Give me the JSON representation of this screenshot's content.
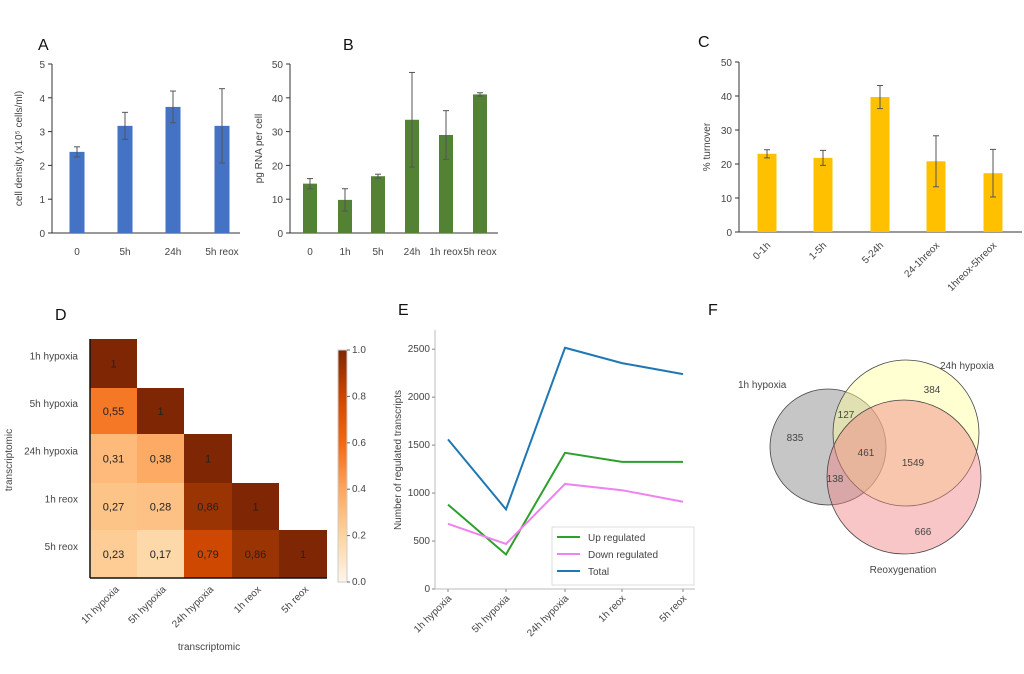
{
  "chart_data": [
    {
      "panel": "A",
      "type": "bar",
      "color": "#4472C4",
      "categories": [
        "0",
        "5h",
        "24h",
        "5h reox"
      ],
      "values": [
        2.4,
        3.17,
        3.73,
        3.17
      ],
      "errors": [
        0.15,
        0.4,
        0.47,
        1.1
      ],
      "ylabel": "cell density (x10⁵ cells/ml)",
      "xlabel": "",
      "ylim": [
        0,
        5
      ],
      "yticks": [
        0,
        1,
        2,
        3,
        4,
        5
      ]
    },
    {
      "panel": "B",
      "type": "bar",
      "color": "#548235",
      "categories": [
        "0",
        "1h",
        "5h",
        "24h",
        "1h reox",
        "5h reox"
      ],
      "values": [
        14.6,
        9.8,
        16.8,
        33.5,
        29.0,
        41.0
      ],
      "errors": [
        1.5,
        3.3,
        0.6,
        14.0,
        7.2,
        0.5
      ],
      "ylabel": "pg RNA per cell",
      "xlabel": "",
      "ylim": [
        0,
        50
      ],
      "yticks": [
        0,
        10,
        20,
        30,
        40,
        50
      ]
    },
    {
      "panel": "C",
      "type": "bar",
      "color": "#FFC000",
      "categories": [
        "0-1h",
        "1-5h",
        "5-24h",
        "24-1hreox",
        "1hreox-5hreox"
      ],
      "values": [
        23.0,
        21.8,
        39.7,
        20.8,
        17.3
      ],
      "errors": [
        1.2,
        2.2,
        3.4,
        7.5,
        7.0
      ],
      "ylabel": "% turnover",
      "xlabel": "",
      "ylim": [
        0,
        50
      ],
      "yticks": [
        0,
        10,
        20,
        30,
        40,
        50
      ]
    },
    {
      "panel": "D",
      "type": "heatmap",
      "labels": [
        "1h hypoxia",
        "5h hypoxia",
        "24h hypoxia",
        "1h reox",
        "5h reox"
      ],
      "matrix": [
        [
          "1"
        ],
        [
          "0,55",
          "1"
        ],
        [
          "0,31",
          "0,38",
          "1"
        ],
        [
          "0,27",
          "0,28",
          "0,86",
          "1"
        ],
        [
          "0,23",
          "0,17",
          "0,79",
          "0,86",
          "1"
        ]
      ],
      "xlabel": "transcriptomic",
      "ylabel": "transcriptomic",
      "colorbar_range": [
        0.0,
        1.0
      ],
      "colorbar_ticks": [
        "0.0",
        "0.2",
        "0.4",
        "0.6",
        "0.8",
        "1.0"
      ],
      "colormap": "Oranges"
    },
    {
      "panel": "E",
      "type": "line",
      "categories": [
        "1h hypoxia",
        "5h hypoxia",
        "24h hypoxia",
        "1h reox",
        "5h reox"
      ],
      "series": [
        {
          "name": "Up regulated",
          "color": "#2ca02c",
          "values": [
            880,
            360,
            1420,
            1325,
            1325
          ]
        },
        {
          "name": "Down regulated",
          "color": "#ee82ee",
          "values": [
            680,
            470,
            1095,
            1030,
            910
          ]
        },
        {
          "name": "Total",
          "color": "#1f77b4",
          "values": [
            1560,
            830,
            2515,
            2355,
            2240
          ]
        }
      ],
      "ylabel": "Number of regulated transcripts",
      "xlabel": "",
      "ylim": [
        0,
        2700
      ],
      "yticks": [
        0,
        500,
        1000,
        1500,
        2000,
        2500
      ],
      "legend": "bottom-right"
    },
    {
      "panel": "F",
      "type": "venn",
      "sets": [
        {
          "name": "1h hypoxia",
          "color": "#808080"
        },
        {
          "name": "24h hypoxia",
          "color": "#ffff99"
        },
        {
          "name": "Reoxygenation",
          "color": "#f08080"
        }
      ],
      "regions": {
        "1h_only": 835,
        "1h_24h_only": 127,
        "all_three": 461,
        "24h_reox_only": 1549,
        "1h_reox_only": 138,
        "24h_only": 384,
        "reox_only": 666
      }
    }
  ]
}
